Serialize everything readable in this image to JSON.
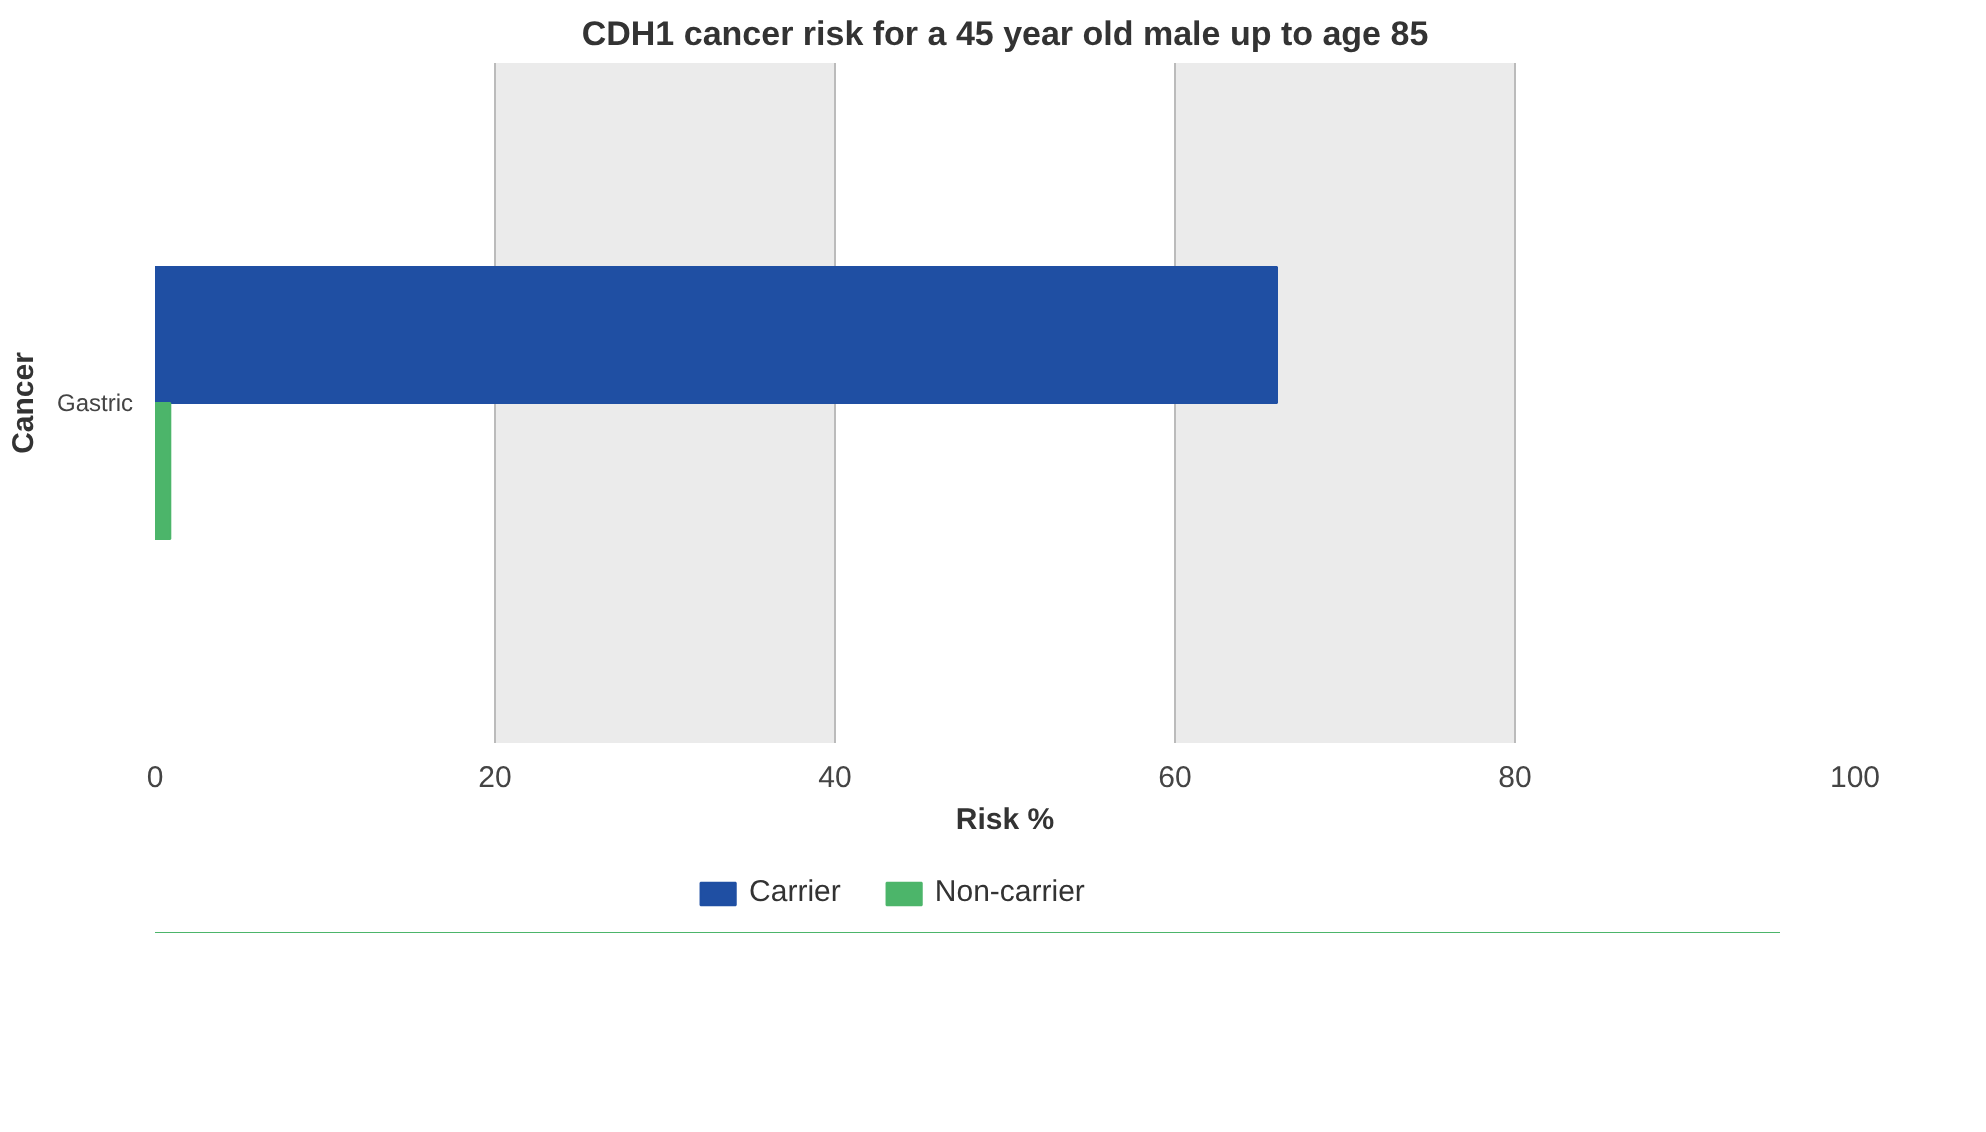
{
  "chart_data": {
    "type": "bar",
    "orientation": "horizontal",
    "title": "CDH1 cancer risk for a 45 year old male up to age 85",
    "xlabel": "Risk %",
    "ylabel": "Cancer",
    "categories": [
      "Gastric"
    ],
    "series": [
      {
        "name": "Carrier",
        "color": "#1f4fa3",
        "values": [
          66
        ]
      },
      {
        "name": "Non-carrier",
        "color": "#4cb56a",
        "values": [
          0.9
        ]
      }
    ],
    "xlim": [
      0,
      100
    ],
    "xticks": [
      0,
      20,
      40,
      60,
      80,
      100
    ],
    "bands": [
      {
        "axis": "x",
        "from": 20,
        "to": 40,
        "color": "#ebebeb"
      },
      {
        "axis": "x",
        "from": 60,
        "to": 80,
        "color": "#ebebeb"
      }
    ],
    "grid": "x",
    "legend": "bottom"
  }
}
